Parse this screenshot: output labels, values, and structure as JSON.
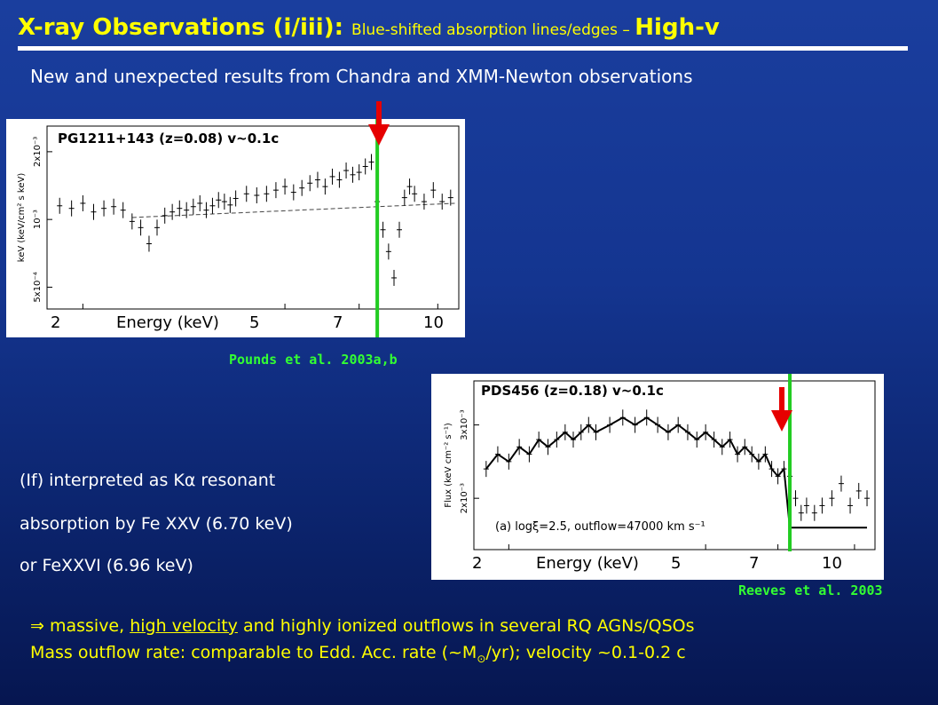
{
  "title": {
    "main": "X-ray Observations (i/iii): ",
    "sub": "Blue-shifted absorption lines/edges – ",
    "end": "High-v"
  },
  "subtitle": "New and unexpected results from Chandra and XMM-Newton observations",
  "panel1": {
    "label": "PG1211+143 (z=0.08) v~0.1c",
    "y_axis_label": "keV (keV/cm² s keV)",
    "y_ticks": [
      "5x10⁻⁴",
      "10⁻³",
      "2x10⁻³"
    ],
    "x_ticks": [
      "2",
      "5",
      "7",
      "10"
    ],
    "x_label": "Energy (keV)",
    "citation": "Pounds et al. 2003a,b"
  },
  "panel2": {
    "label": "PDS456 (z=0.18) v~0.1c",
    "y_axis_label": "Flux (keV cm⁻² s⁻¹)",
    "y_ticks": [
      "2x10⁻³",
      "3x10⁻³"
    ],
    "x_ticks": [
      "2",
      "5",
      "7",
      "10"
    ],
    "x_label": "Energy (keV)",
    "annotation": "(a)  logξ=2.5,  outflow=47000 km s⁻¹",
    "citation": "Reeves et al. 2003"
  },
  "interpretation": [
    "(If) interpreted as Kα resonant",
    "absorption by Fe XXV (6.70 keV)",
    "or FeXXVI (6.96 keV)"
  ],
  "conclusion": {
    "arrow": "⇒",
    "prefix": " massive, ",
    "highlight": "high velocity",
    "rest": " and highly ionized outflows in several RQ  AGNs/QSOs",
    "line2": "Mass outflow rate: comparable to Edd. Acc. rate (~M",
    "sun": "⊙",
    "line2_end": "/yr); velocity ~0.1-0.2 c"
  },
  "colors": {
    "title": "#ffff00",
    "citation": "#33ff33",
    "arrow": "#e60000",
    "marker_line": "#22cc22"
  },
  "chart_data": [
    {
      "type": "scatter",
      "title": "PG1211+143 (z=0.08) v~0.1c",
      "xlabel": "Energy (keV)",
      "xscale": "log",
      "xlim": [
        1.7,
        11
      ],
      "yscale": "log",
      "ylim": [
        0.0004,
        0.0026
      ],
      "series": [
        {
          "x": [
            1.8,
            1.9,
            2.0,
            2.1,
            2.2,
            2.3,
            2.4,
            2.5,
            2.6,
            2.7,
            2.8,
            2.9,
            3.0,
            3.1,
            3.2,
            3.3,
            3.4,
            3.5,
            3.6,
            3.7,
            3.8,
            3.9,
            4.0,
            4.2,
            4.4,
            4.6,
            4.8,
            5.0,
            5.2,
            5.4,
            5.6,
            5.8,
            6.0,
            6.2,
            6.4,
            6.6,
            6.8,
            7.0,
            7.2,
            7.4,
            7.6,
            7.8,
            8.0,
            8.2,
            8.4,
            8.6,
            8.8,
            9.0,
            9.4,
            9.8,
            10.2,
            10.6
          ],
          "y": [
            0.00115,
            0.00112,
            0.00118,
            0.00108,
            0.00112,
            0.00114,
            0.0011,
            0.00098,
            0.00092,
            0.00078,
            0.00092,
            0.00104,
            0.00108,
            0.00112,
            0.0011,
            0.00114,
            0.00118,
            0.0011,
            0.00115,
            0.00122,
            0.0012,
            0.00116,
            0.00124,
            0.0013,
            0.00128,
            0.0013,
            0.00135,
            0.0014,
            0.00132,
            0.00138,
            0.00145,
            0.0015,
            0.0014,
            0.00155,
            0.0015,
            0.00165,
            0.00158,
            0.00162,
            0.00172,
            0.0018,
            0.0012,
            0.0009,
            0.00072,
            0.00055,
            0.0009,
            0.00125,
            0.0014,
            0.0013,
            0.0012,
            0.00135,
            0.0012,
            0.00125
          ]
        }
      ],
      "marker_energy": 7.6
    },
    {
      "type": "scatter",
      "title": "PDS456 (z=0.18) v~0.1c",
      "xlabel": "Energy (keV)",
      "ylabel": "Flux (keV cm⁻² s⁻¹)",
      "xscale": "log",
      "xlim": [
        1.7,
        11
      ],
      "ylim": [
        0.0013,
        0.0036
      ],
      "series": [
        {
          "x": [
            1.8,
            1.9,
            2.0,
            2.1,
            2.2,
            2.3,
            2.4,
            2.5,
            2.6,
            2.7,
            2.8,
            2.9,
            3.0,
            3.2,
            3.4,
            3.6,
            3.8,
            4.0,
            4.2,
            4.4,
            4.6,
            4.8,
            5.0,
            5.2,
            5.4,
            5.6,
            5.8,
            6.0,
            6.2,
            6.4,
            6.6,
            6.8,
            7.0,
            7.2,
            7.4,
            7.6,
            7.8,
            8.0,
            8.3,
            8.6,
            9.0,
            9.4,
            9.8,
            10.2,
            10.6
          ],
          "y": [
            0.0024,
            0.0026,
            0.0025,
            0.0027,
            0.0026,
            0.0028,
            0.0027,
            0.0028,
            0.0029,
            0.0028,
            0.0029,
            0.003,
            0.0029,
            0.003,
            0.0031,
            0.003,
            0.0031,
            0.003,
            0.0029,
            0.003,
            0.0029,
            0.0028,
            0.0029,
            0.0028,
            0.0027,
            0.0028,
            0.0026,
            0.0027,
            0.0026,
            0.0025,
            0.0026,
            0.0024,
            0.0023,
            0.0024,
            0.0023,
            0.002,
            0.0018,
            0.0019,
            0.0018,
            0.0019,
            0.002,
            0.0022,
            0.0019,
            0.0021,
            0.002
          ]
        }
      ],
      "model_line": true,
      "marker_energy": 7.4
    }
  ]
}
